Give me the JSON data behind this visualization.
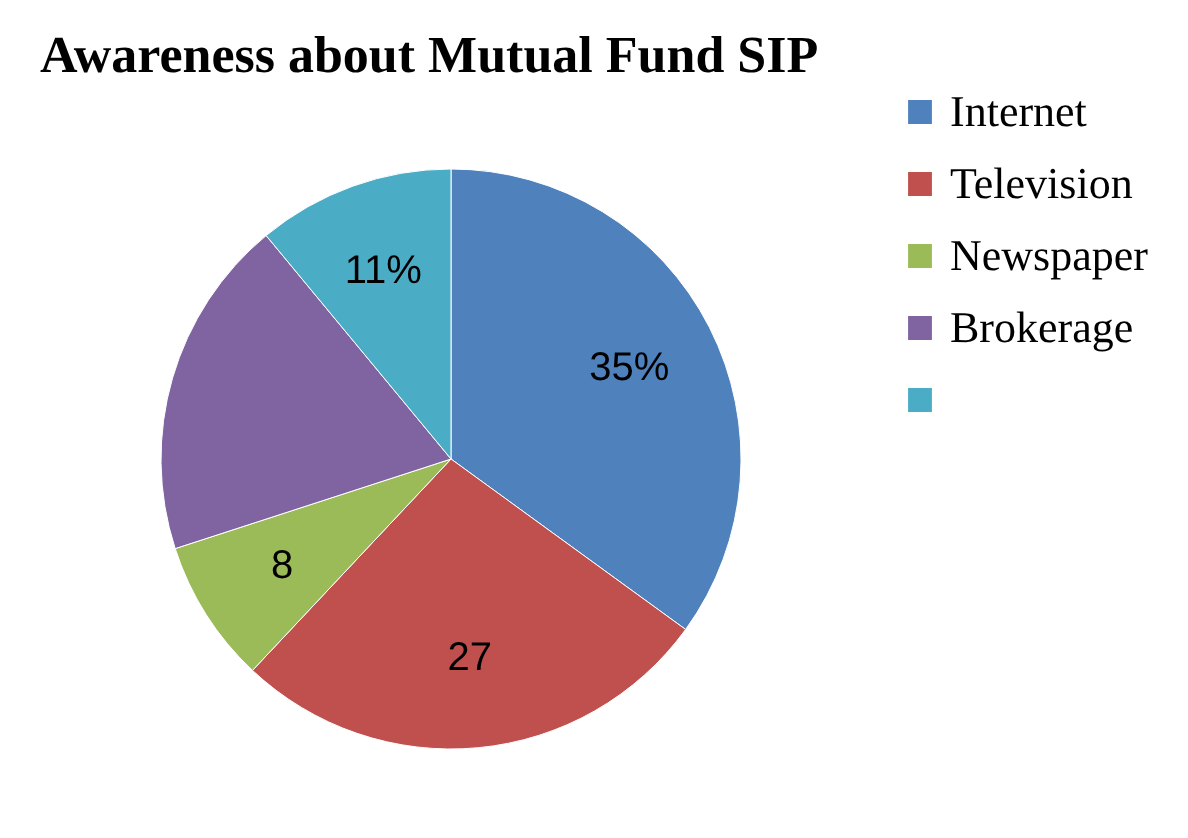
{
  "chart_data": {
    "type": "pie",
    "title": "Awareness about Mutual Fund SIP",
    "categories": [
      "Internet",
      "Television",
      "Newspaper",
      "Brokerage",
      null
    ],
    "values": [
      35,
      27,
      8,
      19,
      11
    ],
    "colors": [
      "#4f81bd",
      "#c0504d",
      "#9bbb59",
      "#8064a2",
      "#4bacc6"
    ],
    "value_labels": [
      "35%",
      "27",
      "8",
      null,
      "11%"
    ],
    "legend": "right"
  }
}
